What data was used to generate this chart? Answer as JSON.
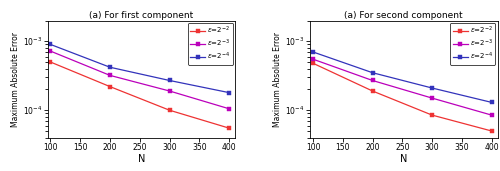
{
  "N": [
    100,
    200,
    300,
    400
  ],
  "subplot1": {
    "title": "(a) For first component",
    "eps_minus2": [
      0.0005,
      0.00022,
      0.0001,
      5.5e-05
    ],
    "eps_minus3": [
      0.00072,
      0.00032,
      0.00019,
      0.000105
    ],
    "eps_minus4": [
      0.0009,
      0.00042,
      0.00027,
      0.00018
    ]
  },
  "subplot2": {
    "title": "(a) For second component",
    "eps_minus2": [
      0.00048,
      0.00019,
      8.5e-05,
      5e-05
    ],
    "eps_minus3": [
      0.00055,
      0.00027,
      0.00015,
      8.5e-05
    ],
    "eps_minus4": [
      0.0007,
      0.00035,
      0.00021,
      0.00013
    ]
  },
  "colors": {
    "eps_minus2": "#EE3333",
    "eps_minus3": "#BB00BB",
    "eps_minus4": "#3333BB"
  },
  "xlabel": "N",
  "ylabel": "Maximum Absolute Error",
  "ylim": [
    4e-05,
    0.002
  ],
  "xlim": [
    95,
    410
  ],
  "xticks": [
    100,
    150,
    200,
    250,
    300,
    350,
    400
  ],
  "figsize": [
    5.0,
    1.71
  ],
  "dpi": 100
}
